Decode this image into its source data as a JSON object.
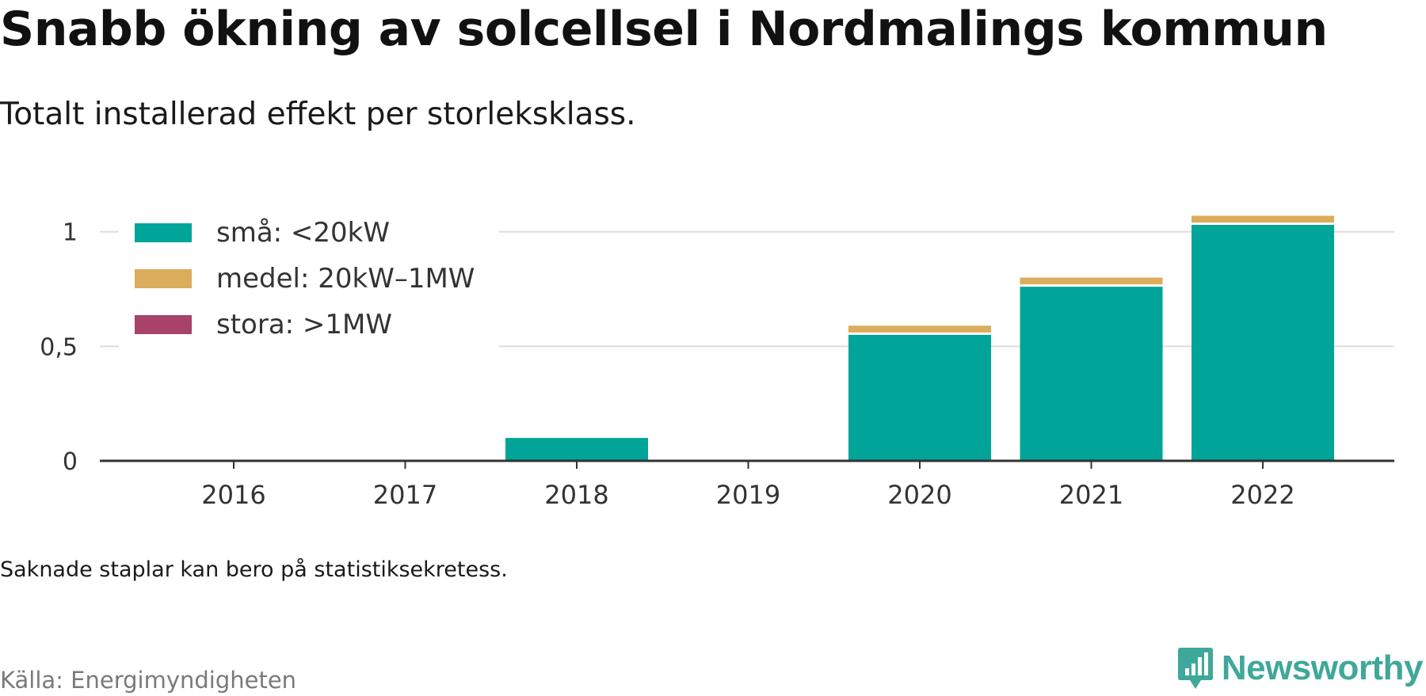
{
  "title": "Snabb ökning av solcellsel i Nordmalings kommun",
  "subtitle": "Totalt installerad effekt per storleksklass.",
  "footnote": "Saknade staplar kan bero på statistiksekretess.",
  "source": "Källa: Energimyndigheten",
  "brand": {
    "name": "Newsworthy",
    "logo_icon": "newsworthy-logo-icon",
    "color": "#3fa89a"
  },
  "chart_data": {
    "type": "bar",
    "stacked": true,
    "categories": [
      "2016",
      "2017",
      "2018",
      "2019",
      "2020",
      "2021",
      "2022"
    ],
    "series": [
      {
        "name": "små: <20kW",
        "color": "#00a498",
        "values": [
          0,
          0,
          0.1,
          0,
          0.55,
          0.76,
          1.03
        ]
      },
      {
        "name": "medel: 20kW–1MW",
        "color": "#dbac5b",
        "values": [
          0,
          0,
          0,
          0,
          0.04,
          0.04,
          0.04
        ]
      },
      {
        "name": "stora: >1MW",
        "color": "#a8426a",
        "values": [
          0,
          0,
          0,
          0,
          0,
          0,
          0
        ]
      }
    ],
    "yticks": [
      0,
      0.5,
      1
    ],
    "ytick_labels": [
      "0",
      "0,5",
      "1"
    ],
    "ylim": [
      0,
      1.12
    ],
    "grid": true,
    "legend_position": "top-left",
    "xlabel": "",
    "ylabel": ""
  }
}
